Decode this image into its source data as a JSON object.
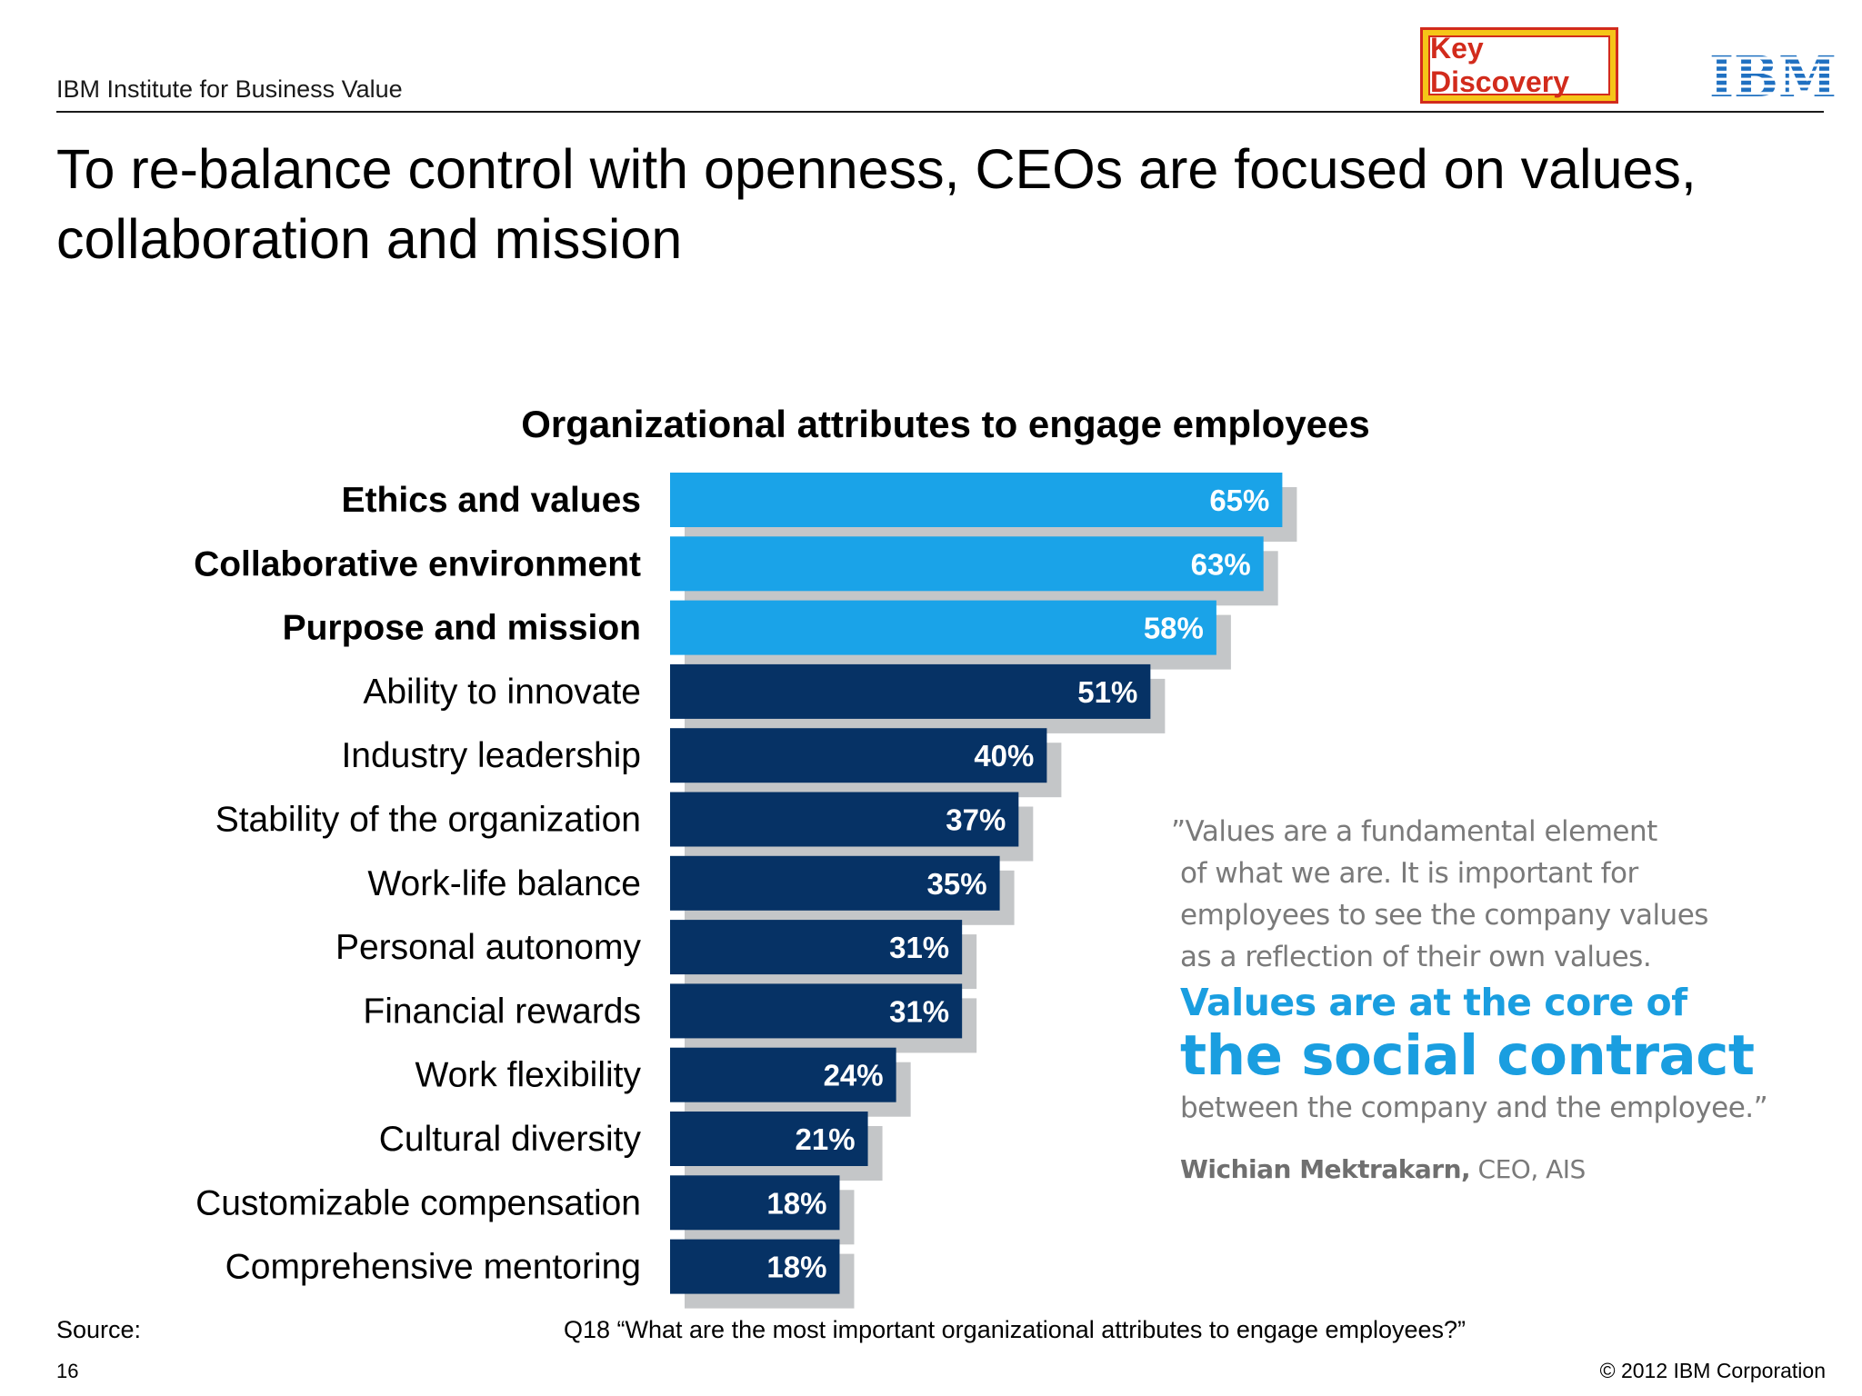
{
  "header": {
    "org_name": "IBM Institute for Business Value",
    "badge": "Key Discovery",
    "logo_text": "IBM"
  },
  "headline": "To re-balance control with openness, CEOs are focused on values, collaboration and mission",
  "chart_data": {
    "type": "bar",
    "orientation": "horizontal",
    "title": "Organizational attributes to engage employees",
    "categories": [
      "Ethics and values",
      "Collaborative environment",
      "Purpose and mission",
      "Ability to innovate",
      "Industry leadership",
      "Stability of the organization",
      "Work-life balance",
      "Personal autonomy",
      "Financial rewards",
      "Work flexibility",
      "Cultural diversity",
      "Customizable compensation",
      "Comprehensive mentoring"
    ],
    "values": [
      65,
      63,
      58,
      51,
      40,
      37,
      35,
      31,
      31,
      24,
      21,
      18,
      18
    ],
    "value_labels": [
      "65%",
      "63%",
      "58%",
      "51%",
      "40%",
      "37%",
      "35%",
      "31%",
      "31%",
      "24%",
      "21%",
      "18%",
      "18%"
    ],
    "highlighted": [
      true,
      true,
      true,
      false,
      false,
      false,
      false,
      false,
      false,
      false,
      false,
      false,
      false
    ],
    "colors": {
      "highlight": "#1aa3e8",
      "normal": "#063265",
      "shadow": "#c4c6c8",
      "label": "#ffffff"
    },
    "xlim": [
      0,
      100
    ],
    "gridlines": false,
    "legend": "none"
  },
  "quote": {
    "line1": "”Values are a fundamental element",
    "line2": "of what we are. It is important for",
    "line3": "employees to see the company values",
    "line4": "as a reflection of their own values.",
    "highlight1": "Values are at the core of",
    "highlight2": "the social contract",
    "line5": "between the company and the employee.”",
    "author_name": "Wichian Mektrakarn,",
    "author_role": " CEO, AIS"
  },
  "footer": {
    "source_label": "Source:",
    "source_text": "Q18 “What are the most important organizational attributes to engage employees?”",
    "page_number": "16",
    "copyright": "© 2012 IBM Corporation"
  }
}
